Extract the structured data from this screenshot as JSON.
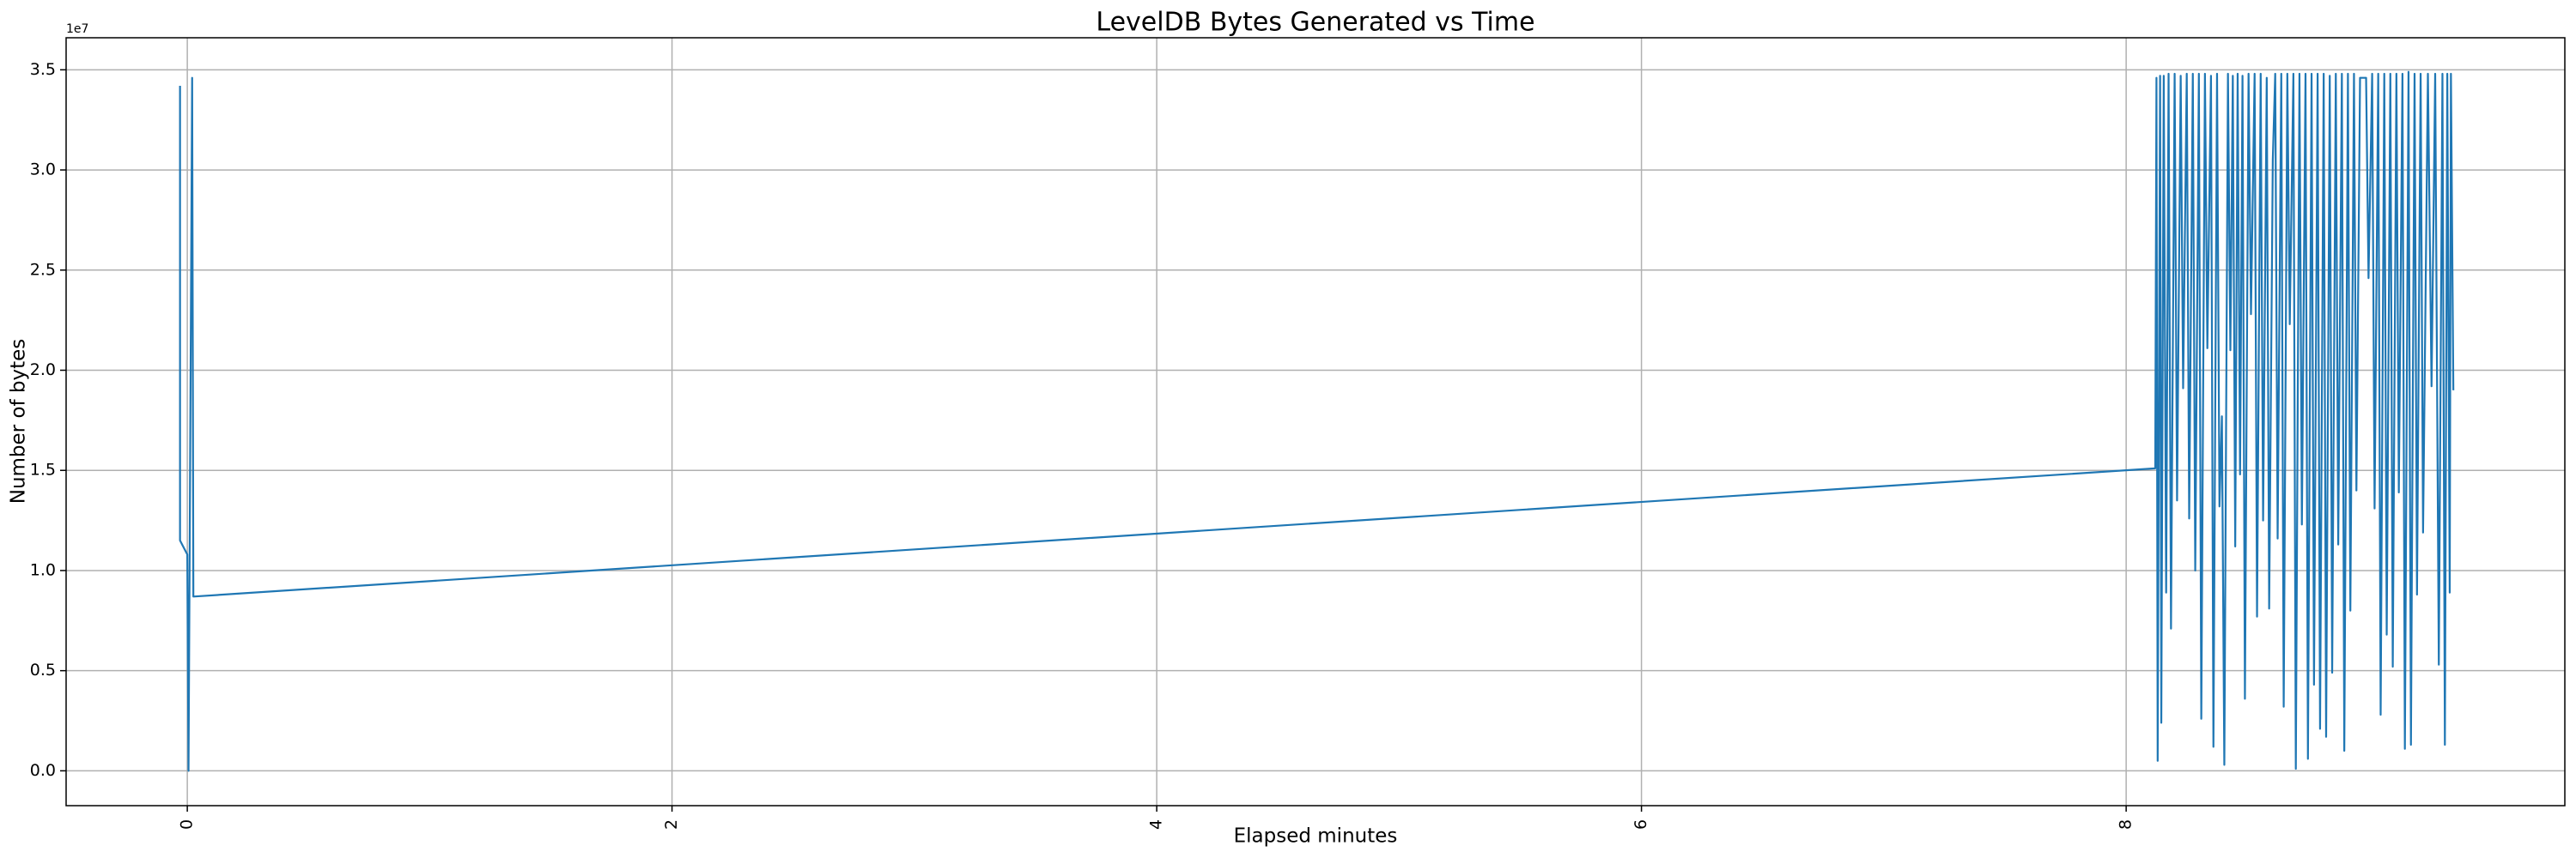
{
  "chart_data": {
    "type": "line",
    "title": "LevelDB Bytes Generated vs Time",
    "xlabel": "Elapsed minutes",
    "ylabel": "Number of bytes",
    "y_offset_label": "1e7",
    "color": "#1f77b4",
    "grid": true,
    "xlim": [
      -0.5,
      9.81
    ],
    "ylim": [
      -1740000,
      36600000
    ],
    "xticks": [
      0,
      2,
      4,
      6,
      8
    ],
    "yticks": [
      {
        "value": 0,
        "label": "0.0"
      },
      {
        "value": 5000000,
        "label": "0.5"
      },
      {
        "value": 10000000,
        "label": "1.0"
      },
      {
        "value": 15000000,
        "label": "1.5"
      },
      {
        "value": 20000000,
        "label": "2.0"
      },
      {
        "value": 25000000,
        "label": "2.5"
      },
      {
        "value": 30000000,
        "label": "3.0"
      },
      {
        "value": 35000000,
        "label": "3.5"
      }
    ],
    "x": [
      -0.03,
      -0.03,
      0.0,
      0.005,
      0.02,
      0.025,
      8.12,
      8.125,
      8.13,
      8.14,
      8.145,
      8.155,
      8.165,
      8.175,
      8.185,
      8.2,
      8.21,
      8.225,
      8.235,
      8.25,
      8.26,
      8.275,
      8.285,
      8.3,
      8.31,
      8.325,
      8.335,
      8.35,
      8.36,
      8.375,
      8.385,
      8.395,
      8.405,
      8.42,
      8.43,
      8.44,
      8.45,
      8.46,
      8.47,
      8.48,
      8.49,
      8.505,
      8.515,
      8.53,
      8.54,
      8.555,
      8.565,
      8.58,
      8.59,
      8.605,
      8.615,
      8.625,
      8.64,
      8.65,
      8.665,
      8.675,
      8.69,
      8.7,
      8.715,
      8.725,
      8.74,
      8.75,
      8.765,
      8.775,
      8.79,
      8.8,
      8.815,
      8.825,
      8.84,
      8.85,
      8.865,
      8.875,
      8.89,
      8.9,
      8.915,
      8.925,
      8.94,
      8.95,
      8.965,
      8.975,
      8.99,
      9.0,
      9.015,
      9.025,
      9.04,
      9.05,
      9.065,
      9.075,
      9.09,
      9.1,
      9.115,
      9.125,
      9.14,
      9.15,
      9.165,
      9.175,
      9.19,
      9.2,
      9.215,
      9.225,
      9.245,
      9.26,
      9.275,
      9.29,
      9.305,
      9.315,
      9.325,
      9.335,
      9.34,
      9.35
    ],
    "values": [
      34200000,
      11500000,
      10800000,
      0,
      34600000,
      8700000,
      15100000,
      34600000,
      500000,
      34700000,
      2400000,
      34700000,
      8900000,
      34800000,
      7100000,
      34800000,
      13500000,
      34700000,
      19100000,
      34800000,
      12600000,
      34800000,
      10000000,
      34800000,
      2600000,
      34800000,
      21100000,
      34700000,
      1200000,
      34800000,
      13200000,
      17700000,
      300000,
      34800000,
      21000000,
      34700000,
      11200000,
      34800000,
      14800000,
      34700000,
      3600000,
      34800000,
      22800000,
      34800000,
      7700000,
      34800000,
      12500000,
      34600000,
      8100000,
      30500000,
      34800000,
      11600000,
      34800000,
      3200000,
      34800000,
      22300000,
      34800000,
      100000,
      34800000,
      12300000,
      34800000,
      600000,
      34800000,
      4300000,
      34800000,
      2100000,
      34800000,
      1700000,
      34700000,
      4900000,
      34800000,
      11300000,
      34800000,
      1000000,
      34800000,
      8000000,
      34800000,
      14000000,
      34600000,
      34600000,
      34600000,
      24600000,
      34800000,
      13100000,
      34800000,
      2800000,
      34800000,
      6800000,
      34800000,
      5200000,
      34800000,
      13900000,
      34800000,
      1100000,
      34900000,
      1300000,
      34800000,
      8800000,
      34800000,
      11900000,
      34800000,
      19200000,
      34800000,
      5300000,
      34800000,
      1300000,
      34800000,
      8900000,
      34800000,
      19000000
    ]
  }
}
